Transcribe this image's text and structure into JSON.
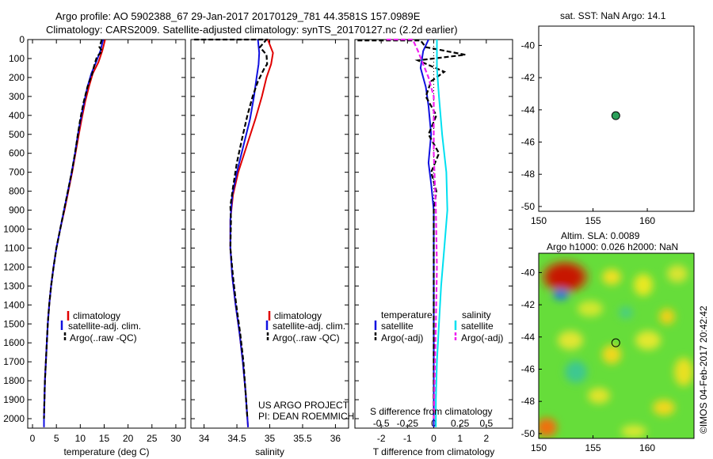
{
  "header": {
    "line1": "Argo profile: AO 5902388_67 29-Jan-2017 20170129_781 44.3581S 157.0989E",
    "line2": "Climatology: CARS2009. Satellite-adjusted climatology: synTS_20170127.nc (2.2d earlier)"
  },
  "colors": {
    "clim": "#e00000",
    "sat": "#1010e0",
    "argo": "#000000",
    "sal_sat": "#00e0f0",
    "sal_argo": "#f020f0"
  },
  "chart_data": [
    {
      "id": "temperature",
      "type": "line",
      "xlabel": "temperature (deg C)",
      "xlim": [
        -1,
        32
      ],
      "ylim": [
        2050,
        0
      ],
      "xticks": [
        "0",
        "5",
        "10",
        "15",
        "20",
        "25",
        "30"
      ],
      "xtick_values": [
        0,
        5,
        10,
        15,
        20,
        25,
        30
      ],
      "yticks": [
        "0",
        "100",
        "200",
        "300",
        "400",
        "500",
        "600",
        "700",
        "800",
        "900",
        "1000",
        "1100",
        "1200",
        "1300",
        "1400",
        "1500",
        "1600",
        "1700",
        "1800",
        "1900",
        "2000"
      ],
      "ytick_values": [
        0,
        100,
        200,
        300,
        400,
        500,
        600,
        700,
        800,
        900,
        1000,
        1100,
        1200,
        1300,
        1400,
        1500,
        1600,
        1700,
        1800,
        1900,
        2000
      ],
      "legend": [
        "climatology",
        "satellite-adj. clim.",
        "Argo(..raw -QC)"
      ],
      "series": [
        {
          "name": "climatology",
          "color_key": "clim",
          "dash": false,
          "points": [
            [
              15.2,
              0
            ],
            [
              14.6,
              60
            ],
            [
              13.8,
              120
            ],
            [
              12.6,
              180
            ],
            [
              11.8,
              250
            ],
            [
              11.0,
              330
            ],
            [
              10.3,
              420
            ],
            [
              9.7,
              500
            ],
            [
              9.0,
              600
            ],
            [
              8.3,
              700
            ],
            [
              7.5,
              800
            ],
            [
              6.7,
              900
            ],
            [
              5.8,
              1000
            ],
            [
              5.0,
              1100
            ],
            [
              4.4,
              1200
            ],
            [
              3.9,
              1300
            ],
            [
              3.5,
              1400
            ],
            [
              3.2,
              1500
            ],
            [
              3.0,
              1600
            ],
            [
              2.8,
              1700
            ],
            [
              2.6,
              1800
            ],
            [
              2.5,
              1900
            ],
            [
              2.4,
              2000
            ],
            [
              2.4,
              2045
            ]
          ]
        },
        {
          "name": "satellite-adj. clim.",
          "color_key": "sat",
          "dash": false,
          "points": [
            [
              14.8,
              0
            ],
            [
              14.2,
              60
            ],
            [
              13.3,
              120
            ],
            [
              12.3,
              180
            ],
            [
              11.5,
              250
            ],
            [
              10.8,
              330
            ],
            [
              10.1,
              420
            ],
            [
              9.5,
              500
            ],
            [
              8.9,
              600
            ],
            [
              8.2,
              700
            ],
            [
              7.4,
              800
            ],
            [
              6.6,
              900
            ],
            [
              5.8,
              1000
            ],
            [
              5.0,
              1100
            ],
            [
              4.4,
              1200
            ],
            [
              3.9,
              1300
            ],
            [
              3.5,
              1400
            ],
            [
              3.2,
              1500
            ],
            [
              3.0,
              1600
            ],
            [
              2.8,
              1700
            ],
            [
              2.6,
              1800
            ],
            [
              2.5,
              1900
            ],
            [
              2.4,
              2000
            ],
            [
              2.4,
              2045
            ]
          ]
        },
        {
          "name": "Argo(..raw -QC)",
          "color_key": "argo",
          "dash": true,
          "points": [
            [
              14.5,
              0
            ],
            [
              14.0,
              40
            ],
            [
              14.6,
              60
            ],
            [
              13.5,
              90
            ],
            [
              13.0,
              130
            ],
            [
              12.5,
              180
            ],
            [
              11.5,
              250
            ],
            [
              10.7,
              330
            ],
            [
              10.0,
              420
            ],
            [
              9.5,
              500
            ],
            [
              8.9,
              600
            ],
            [
              8.2,
              700
            ],
            [
              7.4,
              800
            ],
            [
              6.6,
              900
            ],
            [
              5.8,
              1000
            ],
            [
              5.0,
              1100
            ],
            [
              4.4,
              1200
            ],
            [
              3.9,
              1300
            ],
            [
              3.5,
              1400
            ],
            [
              3.2,
              1500
            ],
            [
              3.0,
              1600
            ],
            [
              2.8,
              1700
            ],
            [
              2.6,
              1800
            ],
            [
              2.5,
              1900
            ],
            [
              2.4,
              2000
            ]
          ]
        }
      ]
    },
    {
      "id": "salinity",
      "type": "line",
      "xlabel": "salinity",
      "xlim": [
        33.8,
        36.2
      ],
      "ylim": [
        2050,
        0
      ],
      "xticks": [
        "34",
        "34.5",
        "35",
        "35.5",
        "36"
      ],
      "xtick_values": [
        34,
        34.5,
        35,
        35.5,
        36
      ],
      "legend": [
        "climatology",
        "satellite-adj. clim.",
        "Argo(..raw -QC)"
      ],
      "annotation": [
        "US ARGO PROJECT",
        "PI: DEAN ROEMMICH"
      ],
      "series": [
        {
          "name": "climatology",
          "color_key": "clim",
          "dash": false,
          "points": [
            [
              34.97,
              0
            ],
            [
              35.05,
              70
            ],
            [
              35.02,
              130
            ],
            [
              34.95,
              200
            ],
            [
              34.88,
              300
            ],
            [
              34.78,
              420
            ],
            [
              34.65,
              560
            ],
            [
              34.52,
              700
            ],
            [
              34.44,
              820
            ],
            [
              34.4,
              950
            ],
            [
              34.4,
              1100
            ],
            [
              34.43,
              1250
            ],
            [
              34.48,
              1400
            ],
            [
              34.54,
              1550
            ],
            [
              34.59,
              1700
            ],
            [
              34.63,
              1850
            ],
            [
              34.66,
              2000
            ],
            [
              34.67,
              2045
            ]
          ]
        },
        {
          "name": "satellite-adj. clim.",
          "color_key": "sat",
          "dash": false,
          "points": [
            [
              34.82,
              0
            ],
            [
              34.84,
              70
            ],
            [
              34.83,
              130
            ],
            [
              34.8,
              200
            ],
            [
              34.76,
              300
            ],
            [
              34.7,
              420
            ],
            [
              34.6,
              560
            ],
            [
              34.5,
              700
            ],
            [
              34.43,
              820
            ],
            [
              34.4,
              950
            ],
            [
              34.4,
              1100
            ],
            [
              34.43,
              1250
            ],
            [
              34.48,
              1400
            ],
            [
              34.54,
              1550
            ],
            [
              34.59,
              1700
            ],
            [
              34.63,
              1850
            ],
            [
              34.66,
              2000
            ],
            [
              34.67,
              2045
            ]
          ]
        },
        {
          "name": "Argo(..raw -QC)",
          "color_key": "argo",
          "dash": true,
          "points": [
            [
              33.85,
              0
            ],
            [
              34.95,
              0
            ],
            [
              34.85,
              40
            ],
            [
              34.95,
              80
            ],
            [
              34.96,
              130
            ],
            [
              34.92,
              150
            ],
            [
              34.82,
              220
            ],
            [
              34.74,
              300
            ],
            [
              34.66,
              400
            ],
            [
              34.58,
              520
            ],
            [
              34.5,
              650
            ],
            [
              34.44,
              780
            ],
            [
              34.4,
              880
            ],
            [
              34.41,
              950
            ],
            [
              34.4,
              1100
            ],
            [
              34.44,
              1250
            ],
            [
              34.49,
              1400
            ],
            [
              34.55,
              1550
            ],
            [
              34.6,
              1700
            ],
            [
              34.63,
              1850
            ],
            [
              34.66,
              2000
            ]
          ]
        }
      ]
    },
    {
      "id": "difference",
      "type": "line",
      "xlabel": "T difference from climatology",
      "top_label": "S difference from climatology",
      "xlim": [
        -3,
        3
      ],
      "ylim": [
        2050,
        0
      ],
      "xticks": [
        "-2",
        "-1",
        "0",
        "1",
        "2"
      ],
      "xtick_values": [
        -2,
        -1,
        0,
        1,
        2
      ],
      "sxticks": [
        "-0.5",
        "-0.25",
        "0",
        "0.25",
        "0.5"
      ],
      "sxtick_values": [
        -0.5,
        -0.25,
        0,
        0.25,
        0.5
      ],
      "legend_titles": [
        "temperature",
        "salinity"
      ],
      "legend_left": [
        "satellite",
        "Argo(-adj)"
      ],
      "legend_right": [
        "satellite",
        "Argo(-adj)"
      ],
      "series": [
        {
          "name": "T satellite",
          "color_key": "sat",
          "dash": false,
          "points": [
            [
              -0.2,
              0
            ],
            [
              -0.4,
              60
            ],
            [
              -0.5,
              150
            ],
            [
              -0.3,
              250
            ],
            [
              -0.2,
              350
            ],
            [
              -0.1,
              500
            ],
            [
              -0.2,
              650
            ],
            [
              -0.1,
              760
            ],
            [
              0,
              900
            ],
            [
              0,
              1100
            ],
            [
              0,
              1400
            ],
            [
              0,
              1700
            ],
            [
              0,
              2045
            ]
          ]
        },
        {
          "name": "T Argo(-adj)",
          "color_key": "argo",
          "dash": true,
          "points": [
            [
              -2.9,
              5
            ],
            [
              -0.5,
              5
            ],
            [
              -0.3,
              40
            ],
            [
              1.2,
              80
            ],
            [
              -0.6,
              110
            ],
            [
              0.4,
              170
            ],
            [
              -0.1,
              220
            ],
            [
              -0.3,
              300
            ],
            [
              0.1,
              400
            ],
            [
              -0.2,
              500
            ],
            [
              0.2,
              600
            ],
            [
              -0.1,
              700
            ],
            [
              0.1,
              800
            ],
            [
              0,
              900
            ],
            [
              0,
              1200
            ],
            [
              0,
              1600
            ],
            [
              0,
              2000
            ]
          ]
        },
        {
          "name": "S satellite",
          "color_key": "sal_sat",
          "dash": false,
          "points": [
            [
              0.03,
              0
            ],
            [
              0.03,
              150
            ],
            [
              0.05,
              300
            ],
            [
              0.08,
              500
            ],
            [
              0.12,
              700
            ],
            [
              0.13,
              900
            ],
            [
              0.1,
              1100
            ],
            [
              0.07,
              1300
            ],
            [
              0.05,
              1500
            ],
            [
              0.03,
              1700
            ],
            [
              0.02,
              1900
            ],
            [
              0.02,
              2045
            ]
          ]
        },
        {
          "name": "S Argo(-adj)",
          "color_key": "sal_argo",
          "dash": true,
          "points": [
            [
              -0.45,
              0
            ],
            [
              -0.2,
              0
            ],
            [
              -0.15,
              60
            ],
            [
              -0.1,
              130
            ],
            [
              -0.05,
              200
            ],
            [
              0,
              300
            ],
            [
              0,
              600
            ],
            [
              0.02,
              900
            ],
            [
              0.03,
              1200
            ],
            [
              0.02,
              1500
            ],
            [
              0,
              2000
            ]
          ]
        }
      ]
    }
  ],
  "sst_map": {
    "title": "sat. SST: NaN Argo: 14.1",
    "xticks": [
      "150",
      "155",
      "160"
    ],
    "xtick_values": [
      150,
      155,
      160
    ],
    "yticks": [
      "-40",
      "-42",
      "-44",
      "-46",
      "-48",
      "-50"
    ],
    "ytick_values": [
      -40,
      -42,
      -44,
      -46,
      -48,
      -50
    ],
    "xlim": [
      150,
      164.3
    ],
    "ylim": [
      -50.3,
      -38.8
    ],
    "marker": {
      "lon": 157.1,
      "lat": -44.36
    }
  },
  "sla_map": {
    "title1": "Altim. SLA: 0.0089",
    "title2": "Argo h1000: 0.026 h2000: NaN",
    "xticks": [
      "150",
      "155",
      "160"
    ],
    "xtick_values": [
      150,
      155,
      160
    ],
    "yticks": [
      "-40",
      "-42",
      "-44",
      "-46",
      "-48",
      "-50"
    ],
    "ytick_values": [
      -40,
      -42,
      -44,
      -46,
      -48,
      -50
    ],
    "xlim": [
      150,
      164.3
    ],
    "ylim": [
      -50.3,
      -38.8
    ],
    "marker": {
      "lon": 157.1,
      "lat": -44.36
    },
    "side_label": "©IMOS 04-Feb-2017 20:42:42"
  }
}
